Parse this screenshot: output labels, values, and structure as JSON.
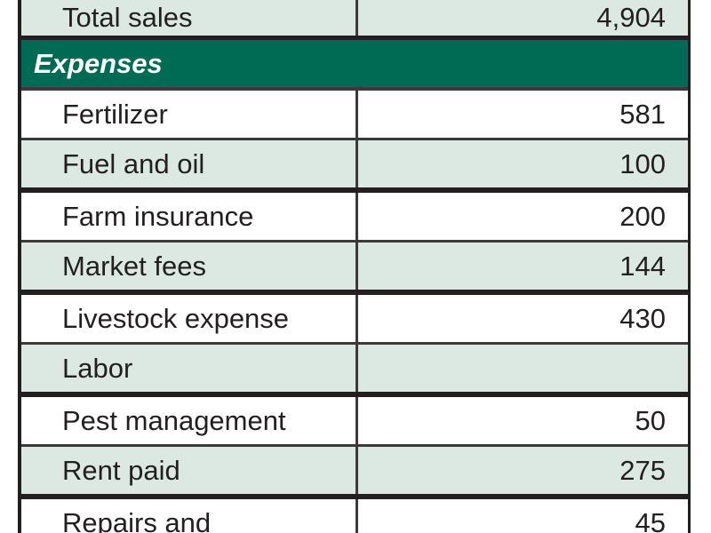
{
  "table": {
    "top_row": {
      "label": "Total sales",
      "value": "4,904"
    },
    "section": {
      "title": "Expenses"
    },
    "expense_rows": [
      {
        "label": "Fertilizer",
        "value": "581"
      },
      {
        "label": "Fuel and oil",
        "value": "100"
      },
      {
        "label": "Farm insurance",
        "value": "200"
      },
      {
        "label": "Market fees",
        "value": "144"
      },
      {
        "label": "Livestock expense",
        "value": "430"
      },
      {
        "label": "Labor",
        "value": ""
      },
      {
        "label": "Pest management",
        "value": "50"
      },
      {
        "label": "Rent paid",
        "value": "275"
      },
      {
        "label": "Repairs and",
        "value": "45"
      }
    ]
  },
  "colors": {
    "header_green": "#006B55",
    "row_shade": "#DCE8E2",
    "rule_dark": "#231F20",
    "rule_mid": "#3A3A3A",
    "text_dark": "#231F20"
  }
}
